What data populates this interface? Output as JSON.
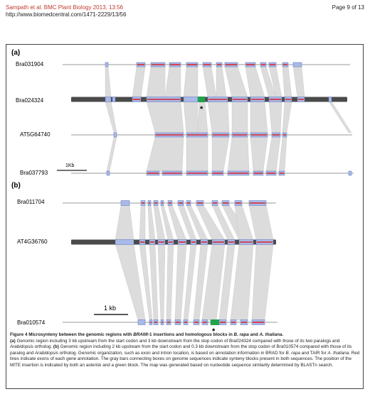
{
  "header": {
    "journal": "Sampath et al. BMC Plant Biology 2013, 13:56",
    "url": "http://www.biomedcentral.com/1471-2229/13/56",
    "page": "Page 9 of 13"
  },
  "colors": {
    "block": "#a9b9e8",
    "block_border": "#5a72b8",
    "exon": "#d9262a",
    "chromosome": "#4a4a4a",
    "connector": "#dcdcdc",
    "mite": "#1fa44a"
  },
  "panel_a": {
    "label": "(a)",
    "tracks": [
      {
        "name": "Bra031904"
      },
      {
        "name": "Bra024324"
      },
      {
        "name": "AT5G64740"
      },
      {
        "name": "Bra037793"
      }
    ],
    "scale_label": "1Kb",
    "mite_marker": "*"
  },
  "panel_b": {
    "label": "(b)",
    "tracks": [
      {
        "name": "Bra011704"
      },
      {
        "name": "AT4G36760"
      },
      {
        "name": "Bra010574"
      }
    ],
    "scale_label": "1 kb",
    "mite_marker": "*"
  },
  "caption": {
    "title_prefix": "Figure 4 ",
    "title_text": "Microsynteny between the genomic regions with ",
    "title_italic_1": "BRAMI",
    "title_text_2": "-1 insertions and homologous blocks in ",
    "title_italic_2": "B. rapa",
    "title_text_3": " and ",
    "title_italic_3": "A. thaliana",
    "title_end": ".",
    "a_label": "(a)",
    "a_text_1": " Genomic region including 3 kb upstream from the start codon and 3 kb downstream from the stop codon of Bra024324 compared with those of its two paralogs and ",
    "a_italic": "Arabidopsis",
    "a_text_2": " ortholog. ",
    "b_label": "(b)",
    "b_text_1": " Genomic region including 2 kb upstream from the start codon and 0.3 kb downstream from the stop codon of Bra010574 compared with those of its paralog and ",
    "b_italic": "Arabidopsis",
    "b_text_2": " ortholog. Genomic organization, such as exon and intron location, is based on annotation information in BRAD for ",
    "b_italic_2": "B. rapa",
    "b_text_3": " and TAIR for ",
    "b_italic_3": "A. thaliana",
    "b_text_4": ". Red lines indicate exons of each gene annotation. The gray bars connecting boxes on genome sequences indicate synteny blocks present in both sequences. The position of the MITE insertion is indicated by both an asterisk and a green block. The map was generated based on nucleotide sequence similarity determined by BLASTn search."
  }
}
